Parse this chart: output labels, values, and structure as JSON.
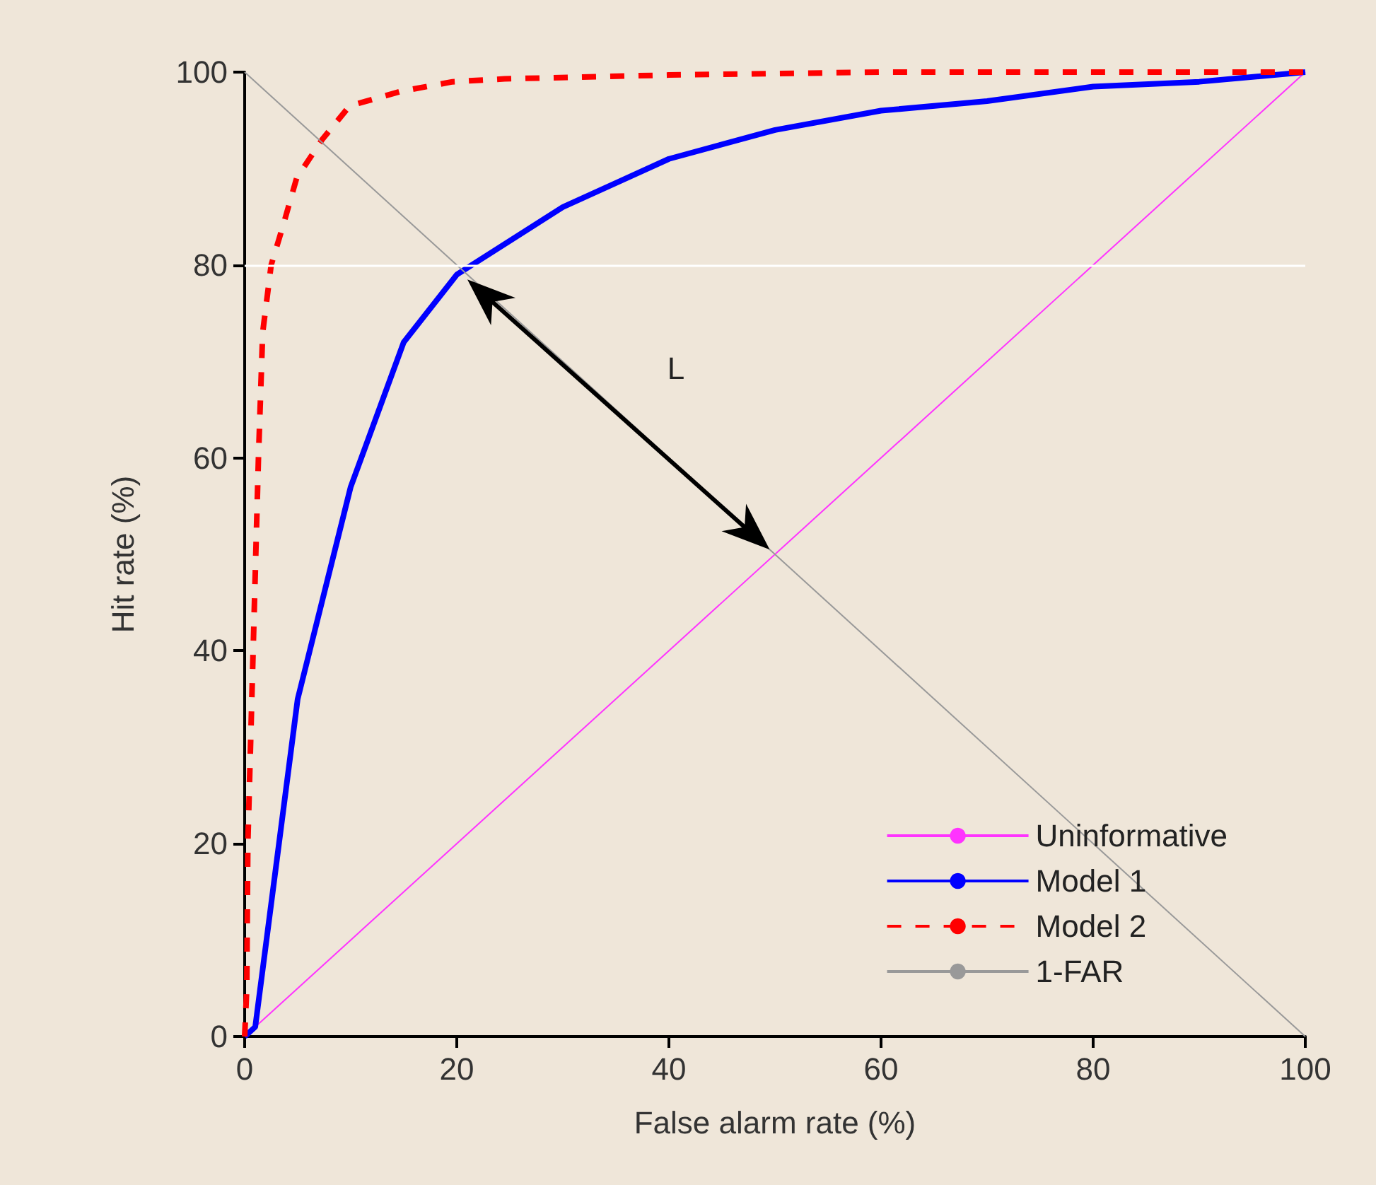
{
  "chart_data": {
    "type": "line",
    "xlabel": "False alarm rate (%)",
    "ylabel": "Hit rate (%)",
    "xlim": [
      0,
      100
    ],
    "ylim": [
      0,
      100
    ],
    "xticks": [
      0,
      20,
      40,
      60,
      80,
      100
    ],
    "yticks": [
      0,
      20,
      40,
      60,
      80,
      100
    ],
    "grid": false,
    "legend": "bottom right",
    "marker": "none",
    "series": [
      {
        "name": "Uninformative",
        "color": "#ff33ff",
        "x": [
          0,
          100
        ],
        "values": [
          0,
          100
        ],
        "line_style": "solid"
      },
      {
        "name": "Model 1",
        "color": "#0000ff",
        "x": [
          0,
          1,
          5,
          10,
          15,
          20,
          30,
          40,
          50,
          60,
          70,
          80,
          90,
          100
        ],
        "values": [
          0,
          1,
          35,
          57,
          72,
          79,
          86,
          91,
          94,
          96,
          97,
          98.5,
          99,
          100
        ],
        "line_style": "solid"
      },
      {
        "name": "Model 2",
        "color": "#ff0000",
        "x": [
          0,
          0.2,
          0.3,
          0.8,
          1.3,
          1.7,
          2.5,
          3.6,
          4.9,
          7.3,
          9.9,
          14.7,
          19.6,
          24.5,
          40,
          60,
          100
        ],
        "values": [
          0,
          5,
          20,
          40,
          60,
          73,
          80,
          84,
          89,
          93,
          96.5,
          98,
          99,
          99.3,
          99.7,
          100,
          100
        ],
        "line_style": "dashed"
      },
      {
        "name": "1-FAR",
        "color": "#999999",
        "x": [
          0,
          100
        ],
        "values": [
          100,
          0
        ],
        "line_style": "solid"
      }
    ],
    "ref_lines": [
      {
        "axis": "y",
        "value": 80,
        "color": "#ffffff"
      }
    ],
    "annotations": [
      "L"
    ]
  }
}
